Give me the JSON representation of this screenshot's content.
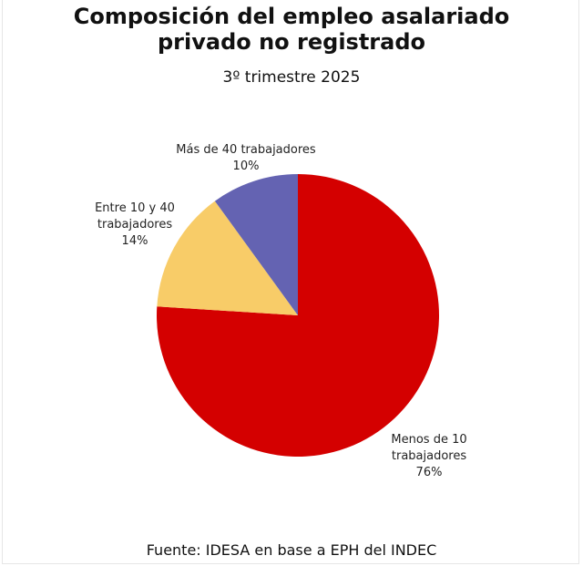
{
  "chart_data": {
    "type": "pie",
    "title": "Composición del empleo asalariado privado no registrado",
    "subtitle": "3º trimestre 2025",
    "source": "Fuente: IDESA en base a EPH del INDEC",
    "slices": [
      {
        "label_lines": [
          "Menos de 10",
          "trabajadores"
        ],
        "value": 76,
        "value_label": "76%",
        "color": "#d40000"
      },
      {
        "label_lines": [
          "Entre 10 y 40",
          "trabajadores"
        ],
        "value": 14,
        "value_label": "14%",
        "color": "#f8cc68"
      },
      {
        "label_lines": [
          "Más de 40 trabajadores"
        ],
        "value": 10,
        "value_label": "10%",
        "color": "#6463b2"
      }
    ]
  }
}
